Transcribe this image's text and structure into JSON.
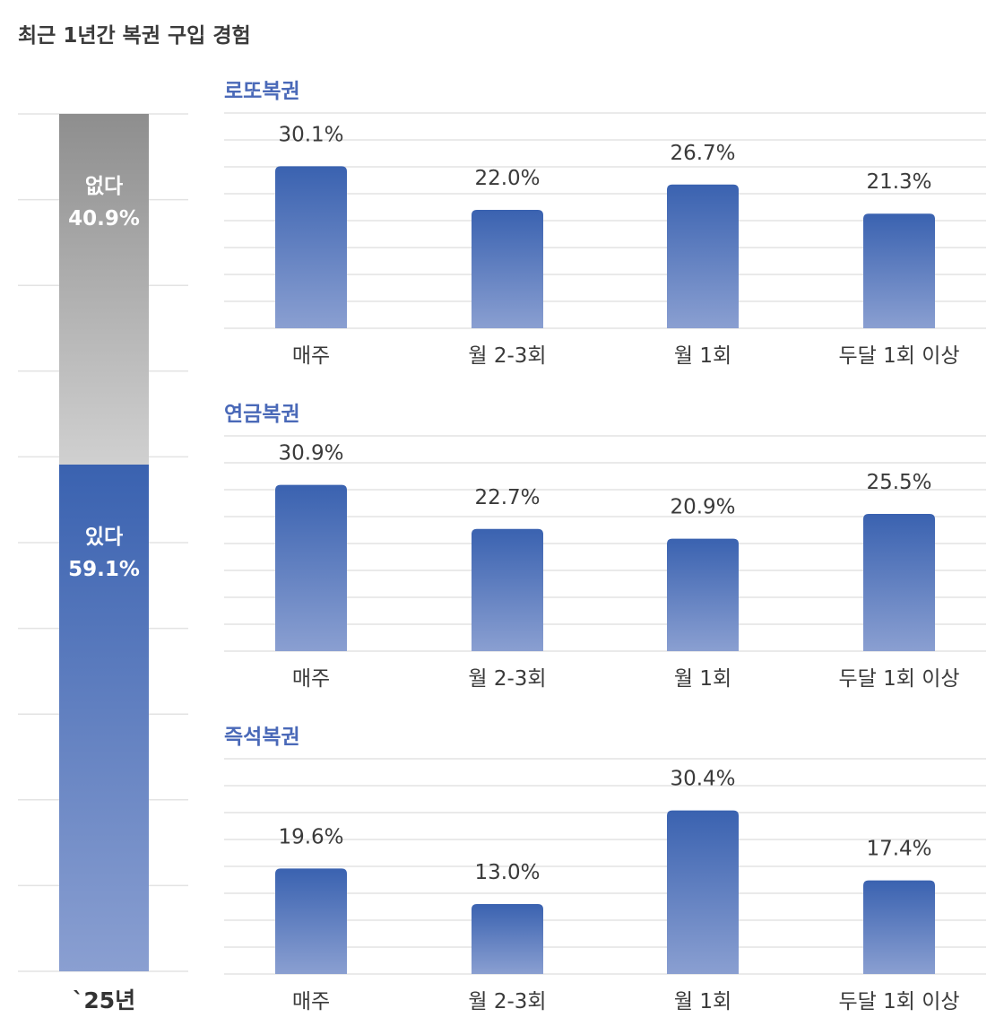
{
  "title": "최근 1년간 복권 구입 경험",
  "colors": {
    "blue_top": "#3a62b0",
    "blue_bottom": "#8a9fd1",
    "gray_top": "#8e8e8e",
    "gray_bottom": "#d0d0d0",
    "panel_title": "#4a69b8",
    "grid": "#e3e3e3"
  },
  "chart_data": [
    {
      "type": "bar",
      "stacked": true,
      "categories": [
        "`25년"
      ],
      "series": [
        {
          "name": "있다",
          "values": [
            59.1
          ]
        },
        {
          "name": "없다",
          "values": [
            40.9
          ]
        }
      ],
      "value_labels": [
        "59.1%",
        "40.9%"
      ],
      "ylim": [
        0,
        100
      ],
      "grid": true
    },
    {
      "type": "bar",
      "title": "로또복권",
      "categories": [
        "매주",
        "월 2-3회",
        "월 1회",
        "두달 1회 이상"
      ],
      "values": [
        30.1,
        22.0,
        26.7,
        21.3
      ],
      "value_labels": [
        "30.1%",
        "22.0%",
        "26.7%",
        "21.3%"
      ],
      "grid": true
    },
    {
      "type": "bar",
      "title": "연금복권",
      "categories": [
        "매주",
        "월 2-3회",
        "월 1회",
        "두달 1회 이상"
      ],
      "values": [
        30.9,
        22.7,
        20.9,
        25.5
      ],
      "value_labels": [
        "30.9%",
        "22.7%",
        "20.9%",
        "25.5%"
      ],
      "grid": true
    },
    {
      "type": "bar",
      "title": "즉석복권",
      "categories": [
        "매주",
        "월 2-3회",
        "월 1회",
        "두달 1회 이상"
      ],
      "values": [
        19.6,
        13.0,
        30.4,
        17.4
      ],
      "value_labels": [
        "19.6%",
        "13.0%",
        "30.4%",
        "17.4%"
      ],
      "grid": true
    }
  ]
}
